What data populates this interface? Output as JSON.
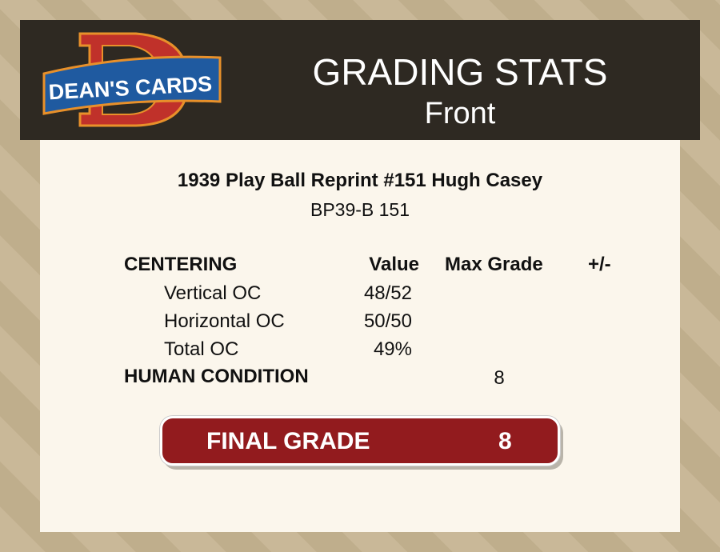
{
  "header": {
    "logo_text": "DEAN'S CARDS",
    "title": "GRADING STATS",
    "subtitle": "Front"
  },
  "card": {
    "title": "1939 Play Ball Reprint #151 Hugh Casey",
    "code": "BP39-B 151"
  },
  "table": {
    "section": "CENTERING",
    "col_value": "Value",
    "col_max": "Max Grade",
    "col_pm": "+/-",
    "rows": [
      {
        "label": "Vertical OC",
        "value": "48/52"
      },
      {
        "label": "Horizontal OC",
        "value": "50/50"
      },
      {
        "label": "Total OC",
        "value": "49%"
      }
    ],
    "human_label": "HUMAN CONDITION",
    "human_max": "8"
  },
  "final": {
    "label": "FINAL GRADE",
    "value": "8"
  },
  "colors": {
    "header": "#2e2922",
    "panel": "#fbf6ec",
    "grade": "#921b1e"
  }
}
